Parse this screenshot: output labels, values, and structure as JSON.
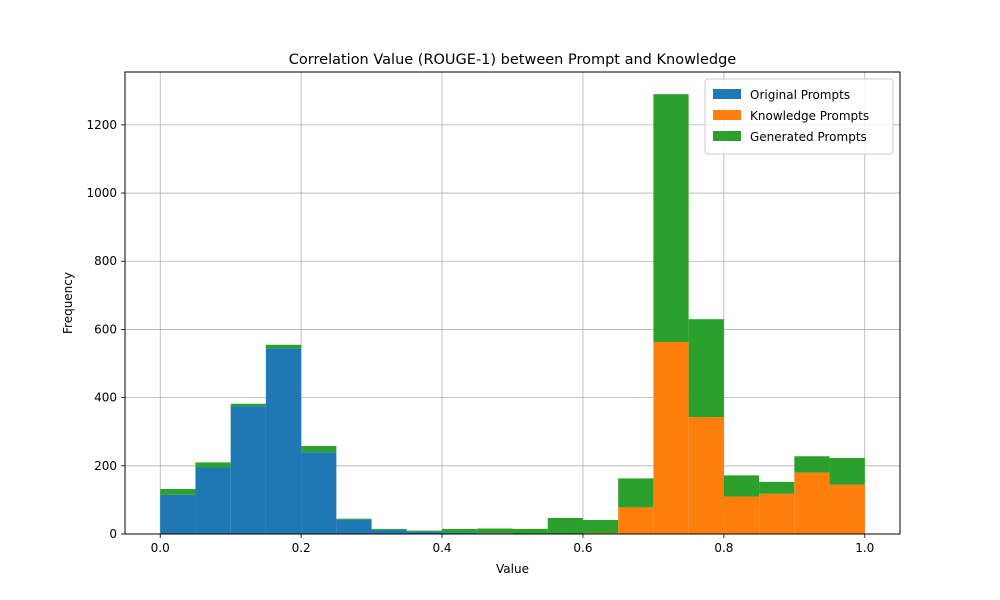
{
  "chart_data": {
    "type": "bar",
    "stacked": true,
    "title": "Correlation Value (ROUGE-1) between Prompt and Knowledge",
    "xlabel": "Value",
    "ylabel": "Frequency",
    "xlim": [
      -0.05,
      1.05
    ],
    "ylim": [
      0,
      1355
    ],
    "x_ticks": [
      0.0,
      0.2,
      0.4,
      0.6,
      0.8,
      1.0
    ],
    "x_tick_labels": [
      "0.0",
      "0.2",
      "0.4",
      "0.6",
      "0.8",
      "1.0"
    ],
    "y_ticks": [
      0,
      200,
      400,
      600,
      800,
      1000,
      1200
    ],
    "y_tick_labels": [
      "0",
      "200",
      "400",
      "600",
      "800",
      "1000",
      "1200"
    ],
    "grid": true,
    "legend_position": "top-right",
    "bin_edges": [
      0.0,
      0.05,
      0.1,
      0.15,
      0.2,
      0.25,
      0.3,
      0.35,
      0.4,
      0.45,
      0.5,
      0.55,
      0.6,
      0.65,
      0.7,
      0.75,
      0.8,
      0.85,
      0.9,
      0.95,
      1.0
    ],
    "series": [
      {
        "name": "Original Prompts",
        "color": "#1f77b4",
        "values": [
          115,
          195,
          375,
          545,
          240,
          42,
          12,
          7,
          4,
          2,
          0,
          0,
          0,
          0,
          0,
          0,
          0,
          0,
          0,
          0
        ]
      },
      {
        "name": "Knowledge Prompts",
        "color": "#ff7f0e",
        "values": [
          0,
          0,
          0,
          0,
          0,
          0,
          0,
          0,
          0,
          0,
          0,
          0,
          3,
          78,
          563,
          343,
          110,
          118,
          180,
          145
        ]
      },
      {
        "name": "Generated Prompts",
        "color": "#2ca02c",
        "values": [
          17,
          15,
          7,
          10,
          18,
          3,
          3,
          3,
          11,
          14,
          15,
          47,
          38,
          85,
          727,
          287,
          62,
          35,
          48,
          78
        ]
      }
    ]
  }
}
